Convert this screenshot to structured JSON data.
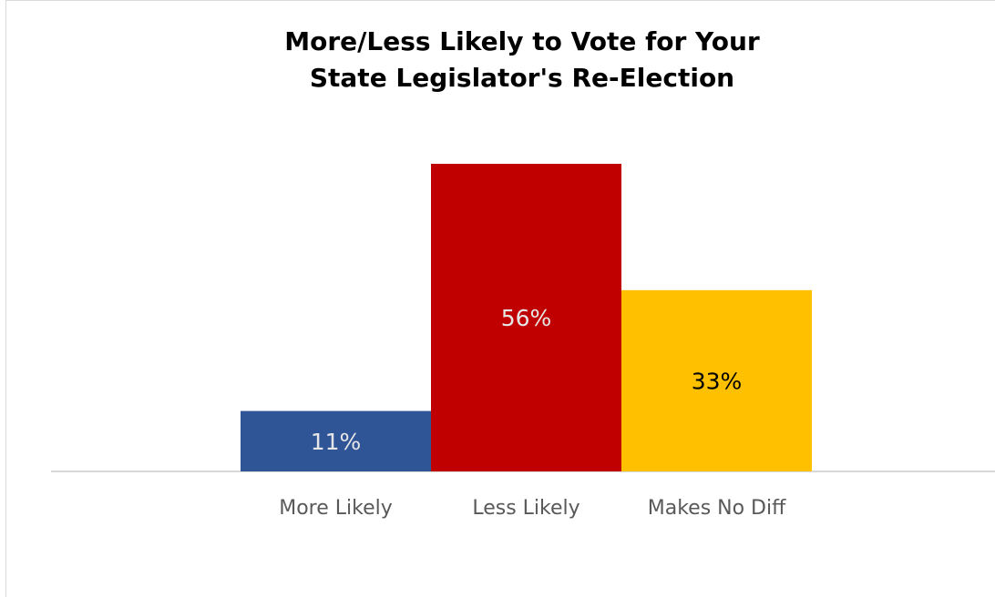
{
  "chart_data": {
    "type": "bar",
    "title": "More/Less Likely to Vote for Your State Legislator's Re-Election",
    "title_lines": [
      "More/Less Likely to Vote for Your",
      "State Legislator's Re-Election"
    ],
    "categories": [
      "More Likely",
      "Less Likely",
      "Makes No Diff"
    ],
    "values": [
      11,
      56,
      33
    ],
    "data_labels": [
      "11%",
      "56%",
      "33%"
    ],
    "colors": [
      "#2f5597",
      "#c00000",
      "#ffc000"
    ],
    "label_colors": [
      "#e6e6e6",
      "#e6e6e6",
      "#000000"
    ],
    "xlabel": "",
    "ylabel": "",
    "ylim": [
      0,
      60
    ],
    "grid": false,
    "legend": "none"
  }
}
